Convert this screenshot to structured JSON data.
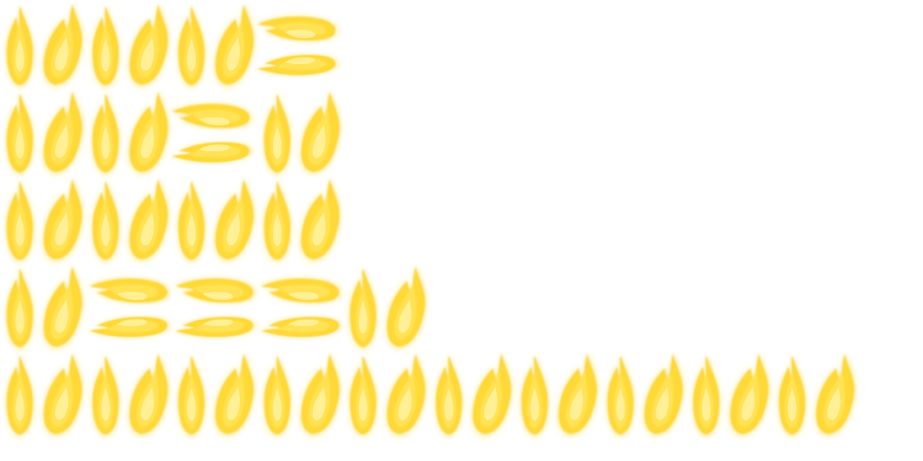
{
  "sprite_sheet": {
    "subject": "flame-sprite",
    "palette": {
      "glow": "#ffe97a",
      "outer": "#ffd936",
      "mid": "#ffe35a",
      "core": "#fff7b0",
      "edge": "#f7c21a",
      "background": "#ffffff"
    },
    "rows": [
      {
        "sprites": [
          "flame-narrow",
          "flame-wide",
          "flame-narrow",
          "flame-wide",
          "flame-narrow",
          "flame-wide",
          "flame-sideways-pair"
        ]
      },
      {
        "sprites": [
          "flame-narrow",
          "flame-wide",
          "flame-narrow",
          "flame-wide",
          "flame-sideways-pair",
          "flame-narrow",
          "flame-wide"
        ]
      },
      {
        "sprites": [
          "flame-narrow",
          "flame-wide",
          "flame-narrow",
          "flame-wide",
          "flame-narrow",
          "flame-wide",
          "flame-narrow",
          "flame-wide"
        ]
      },
      {
        "sprites": [
          "flame-narrow",
          "flame-wide",
          "flame-sideways-pair",
          "flame-sideways-pair",
          "flame-sideways-pair",
          "flame-narrow",
          "flame-wide"
        ]
      },
      {
        "sprites": [
          "flame-narrow",
          "flame-wide",
          "flame-narrow",
          "flame-wide",
          "flame-narrow",
          "flame-wide",
          "flame-narrow",
          "flame-wide",
          "flame-narrow",
          "flame-wide",
          "flame-narrow",
          "flame-wide",
          "flame-narrow",
          "flame-wide",
          "flame-narrow",
          "flame-wide",
          "flame-narrow",
          "flame-wide",
          "flame-narrow",
          "flame-wide"
        ]
      }
    ]
  }
}
